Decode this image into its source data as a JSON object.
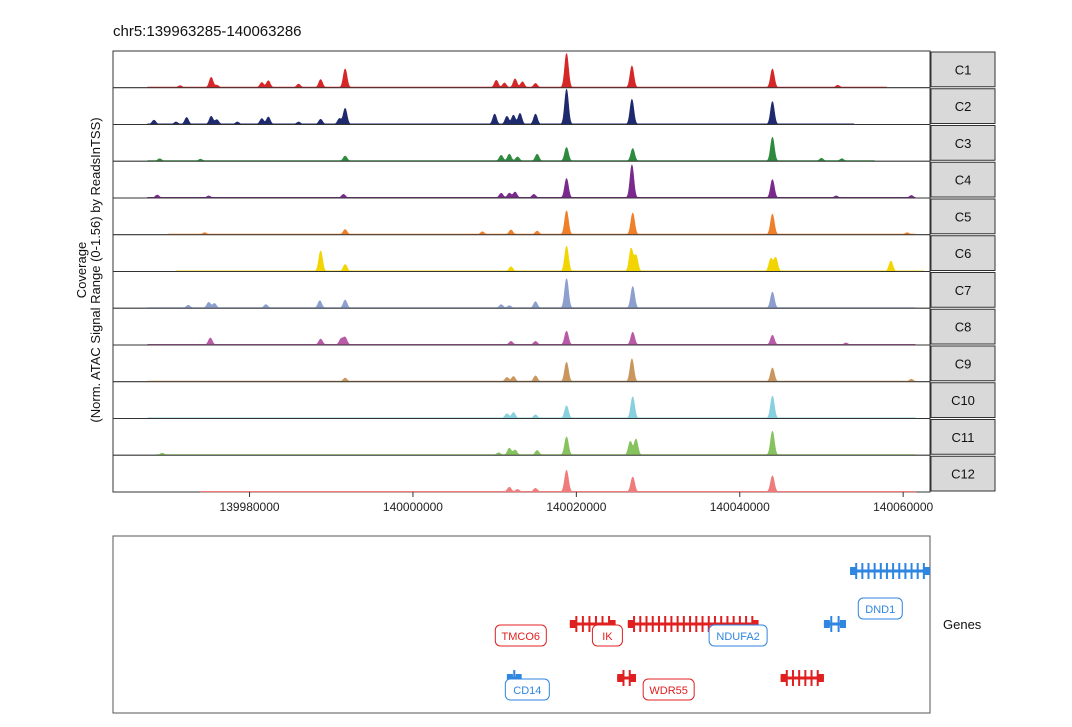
{
  "chart_data": {
    "type": "area",
    "title": "chr5:139963285-140063286",
    "ylabel_lines": [
      "Coverage",
      "(Norm. ATAC Signal Range (0-1.56) by ReadsInTSS)"
    ],
    "xlim": [
      139963285,
      140063286
    ],
    "x_ticks": [
      139980000,
      140000000,
      140020000,
      140040000,
      140060000
    ],
    "x_tick_labels": [
      "139980000",
      "140000000",
      "140020000",
      "140040000",
      "140060000"
    ],
    "y_range": [
      0,
      1.56
    ],
    "tracks": [
      {
        "name": "C1",
        "color": "#d62728",
        "start": 139967500,
        "end": 140058000,
        "peaks": [
          [
            139971500,
            0.08
          ],
          [
            139975300,
            0.45
          ],
          [
            139976000,
            0.1
          ],
          [
            139981500,
            0.22
          ],
          [
            139982300,
            0.3
          ],
          [
            139986000,
            0.15
          ],
          [
            139988700,
            0.35
          ],
          [
            139991700,
            0.82
          ],
          [
            140010200,
            0.32
          ],
          [
            140011200,
            0.2
          ],
          [
            140012500,
            0.38
          ],
          [
            140013400,
            0.25
          ],
          [
            140015000,
            0.18
          ],
          [
            140018800,
            1.5
          ],
          [
            140026800,
            0.95
          ],
          [
            140044000,
            0.82
          ],
          [
            140052000,
            0.1
          ]
        ]
      },
      {
        "name": "C2",
        "color": "#1f2a6e",
        "start": 139967500,
        "end": 140054000,
        "peaks": [
          [
            139968300,
            0.18
          ],
          [
            139971000,
            0.1
          ],
          [
            139972300,
            0.3
          ],
          [
            139975300,
            0.35
          ],
          [
            139976000,
            0.2
          ],
          [
            139978500,
            0.1
          ],
          [
            139981500,
            0.25
          ],
          [
            139982300,
            0.32
          ],
          [
            139986000,
            0.1
          ],
          [
            139988700,
            0.22
          ],
          [
            139991000,
            0.25
          ],
          [
            139991700,
            0.7
          ],
          [
            140010000,
            0.45
          ],
          [
            140011500,
            0.35
          ],
          [
            140012300,
            0.4
          ],
          [
            140013100,
            0.48
          ],
          [
            140015000,
            0.45
          ],
          [
            140018800,
            1.55
          ],
          [
            140026800,
            1.1
          ],
          [
            140044000,
            1.0
          ]
        ]
      },
      {
        "name": "C3",
        "color": "#2e8b3e",
        "start": 139967500,
        "end": 140056500,
        "peaks": [
          [
            139969000,
            0.1
          ],
          [
            139974000,
            0.08
          ],
          [
            139991700,
            0.22
          ],
          [
            140010800,
            0.25
          ],
          [
            140011800,
            0.3
          ],
          [
            140012800,
            0.18
          ],
          [
            140015200,
            0.3
          ],
          [
            140018800,
            0.6
          ],
          [
            140026900,
            0.55
          ],
          [
            140044000,
            1.05
          ],
          [
            140050000,
            0.12
          ],
          [
            140052500,
            0.1
          ]
        ]
      },
      {
        "name": "C4",
        "color": "#7a2a8c",
        "start": 139967500,
        "end": 140061500,
        "peaks": [
          [
            139968700,
            0.12
          ],
          [
            139975000,
            0.08
          ],
          [
            139991500,
            0.15
          ],
          [
            140010800,
            0.2
          ],
          [
            140011800,
            0.2
          ],
          [
            140012500,
            0.25
          ],
          [
            140014800,
            0.15
          ],
          [
            140018800,
            0.85
          ],
          [
            140026800,
            1.45
          ],
          [
            140044000,
            0.8
          ],
          [
            140051800,
            0.08
          ],
          [
            140061000,
            0.1
          ]
        ]
      },
      {
        "name": "C5",
        "color": "#f07f2a",
        "start": 139970000,
        "end": 140061500,
        "peaks": [
          [
            139974500,
            0.08
          ],
          [
            139991700,
            0.22
          ],
          [
            140008500,
            0.12
          ],
          [
            140012000,
            0.2
          ],
          [
            140015200,
            0.15
          ],
          [
            140018800,
            1.05
          ],
          [
            140026900,
            0.95
          ],
          [
            140044000,
            0.9
          ],
          [
            140060500,
            0.08
          ]
        ]
      },
      {
        "name": "C6",
        "color": "#f2d500",
        "start": 139971000,
        "end": 140062500,
        "peaks": [
          [
            139988700,
            0.9
          ],
          [
            139991700,
            0.3
          ],
          [
            140012000,
            0.2
          ],
          [
            140018800,
            1.1
          ],
          [
            140026700,
            1.0
          ],
          [
            140027300,
            0.7
          ],
          [
            140043800,
            0.55
          ],
          [
            140044400,
            0.6
          ],
          [
            140058500,
            0.45
          ]
        ]
      },
      {
        "name": "C7",
        "color": "#8c9fce",
        "start": 139967500,
        "end": 140061500,
        "peaks": [
          [
            139972500,
            0.12
          ],
          [
            139975000,
            0.25
          ],
          [
            139975700,
            0.2
          ],
          [
            139982000,
            0.15
          ],
          [
            139988600,
            0.32
          ],
          [
            139991700,
            0.35
          ],
          [
            140010800,
            0.15
          ],
          [
            140011800,
            0.1
          ],
          [
            140015000,
            0.28
          ],
          [
            140018800,
            1.3
          ],
          [
            140026900,
            0.95
          ],
          [
            140044000,
            0.7
          ]
        ]
      },
      {
        "name": "C8",
        "color": "#b85aa5",
        "start": 139967500,
        "end": 140061500,
        "peaks": [
          [
            139975200,
            0.3
          ],
          [
            139988700,
            0.25
          ],
          [
            139991200,
            0.25
          ],
          [
            139991700,
            0.32
          ],
          [
            140012000,
            0.15
          ],
          [
            140015000,
            0.15
          ],
          [
            140018800,
            0.6
          ],
          [
            140026900,
            0.55
          ],
          [
            140044000,
            0.42
          ],
          [
            140053000,
            0.08
          ]
        ]
      },
      {
        "name": "C9",
        "color": "#c9975e",
        "start": 139967500,
        "end": 140061500,
        "peaks": [
          [
            139991700,
            0.15
          ],
          [
            140011500,
            0.18
          ],
          [
            140012300,
            0.22
          ],
          [
            140015000,
            0.25
          ],
          [
            140018800,
            0.85
          ],
          [
            140026800,
            1.0
          ],
          [
            140044000,
            0.6
          ],
          [
            140061000,
            0.1
          ]
        ]
      },
      {
        "name": "C10",
        "color": "#89d0de",
        "start": 139967500,
        "end": 140061500,
        "peaks": [
          [
            140011500,
            0.2
          ],
          [
            140012300,
            0.25
          ],
          [
            140015000,
            0.15
          ],
          [
            140018800,
            0.55
          ],
          [
            140026900,
            0.95
          ],
          [
            140044000,
            0.98
          ]
        ]
      },
      {
        "name": "C11",
        "color": "#86c25e",
        "start": 139968500,
        "end": 140061500,
        "peaks": [
          [
            139969300,
            0.08
          ],
          [
            140010500,
            0.1
          ],
          [
            140011800,
            0.3
          ],
          [
            140012500,
            0.22
          ],
          [
            140015200,
            0.2
          ],
          [
            140018800,
            0.8
          ],
          [
            140026600,
            0.6
          ],
          [
            140027300,
            0.7
          ],
          [
            140044000,
            1.05
          ]
        ]
      },
      {
        "name": "C12",
        "color": "#ef7b7b",
        "start": 139974000,
        "end": 140061500,
        "peaks": [
          [
            140011800,
            0.2
          ],
          [
            140012800,
            0.1
          ],
          [
            140015000,
            0.15
          ],
          [
            140018800,
            0.95
          ],
          [
            140026900,
            0.65
          ],
          [
            140044000,
            0.7
          ]
        ]
      }
    ],
    "genes": [
      {
        "name": "DND1",
        "strand": "+",
        "color": "#2f86e0",
        "start": 140053500,
        "end": 140063286,
        "row": 0,
        "label_x": 140057200
      },
      {
        "name": "TMCO6",
        "strand": "-",
        "color": "#e02020",
        "start": 140019200,
        "end": 140024800,
        "row": 1,
        "label_x": 140013200
      },
      {
        "name": "IK",
        "strand": "-",
        "color": "#e02020",
        "start": 140026300,
        "end": 140042300,
        "row": 1,
        "label_x": 140023800
      },
      {
        "name": "NDUFA2",
        "strand": "+",
        "color": "#2f86e0",
        "start": 140050300,
        "end": 140053000,
        "row": 1,
        "label_x": 140039800
      },
      {
        "name": "CD14",
        "strand": "+",
        "color": "#2f86e0",
        "start": 140011500,
        "end": 140013300,
        "row": 2,
        "label_x": 140014000
      },
      {
        "name": "WDR55",
        "strand": "-",
        "color": "#e02020",
        "start": 140025000,
        "end": 140027300,
        "row": 2,
        "label_x": 140031300
      }
    ],
    "extra_gene_segments": [
      {
        "color": "#e02020",
        "start": 140045000,
        "end": 140050300,
        "row": 2
      }
    ],
    "gene_panel_label": "Genes"
  }
}
